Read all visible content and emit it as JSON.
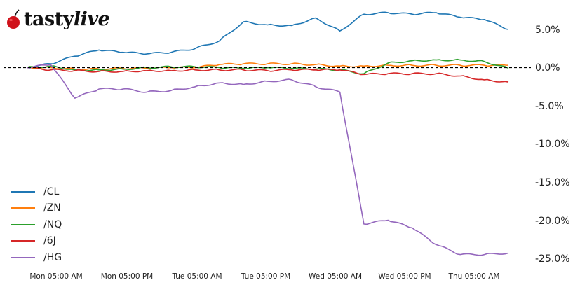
{
  "logo": {
    "text_main": "tasty",
    "text_accent": "live",
    "icon": "cherry-icon",
    "icon_color": "#d0121b"
  },
  "chart_data": {
    "type": "line",
    "title": "",
    "xlabel": "",
    "ylabel": "",
    "ylim": [
      -26.0,
      9.0
    ],
    "grid": false,
    "legend_position": "lower left",
    "x_ticks": [
      "Mon 05:00 AM",
      "Mon 05:00 PM",
      "Tue 05:00 AM",
      "Tue 05:00 PM",
      "Wed 05:00 AM",
      "Wed 05:00 PM",
      "Thu 05:00 AM"
    ],
    "y_ticks": [
      "5.0%",
      "0.0%",
      "-5.0%",
      "-10.0%",
      "-15.0%",
      "-20.0%",
      "-25.0%"
    ],
    "y_tick_values": [
      5,
      0,
      -5,
      -10,
      -15,
      -20,
      -25
    ],
    "reference_line": {
      "y": 0,
      "style": "dashed",
      "color": "#000000"
    },
    "x": [
      "Mon 01:00",
      "Mon 05:00",
      "Mon 09:00",
      "Mon 13:00",
      "Mon 17:00",
      "Mon 21:00",
      "Tue 01:00",
      "Tue 05:00",
      "Tue 09:00",
      "Tue 13:00",
      "Tue 17:00",
      "Tue 21:00",
      "Wed 01:00",
      "Wed 05:00",
      "Wed 09:00",
      "Wed 13:00",
      "Wed 17:00",
      "Wed 21:00",
      "Thu 01:00",
      "Thu 05:00",
      "Thu 09:00"
    ],
    "series": [
      {
        "name": "/CL",
        "color": "#1f77b4",
        "values": [
          0.0,
          0.5,
          1.5,
          2.3,
          2.0,
          1.8,
          2.0,
          2.5,
          3.5,
          6.0,
          5.6,
          5.5,
          6.5,
          4.8,
          7.0,
          7.2,
          7.0,
          7.2,
          6.6,
          6.3,
          5.0
        ]
      },
      {
        "name": "/ZN",
        "color": "#ff7f0e",
        "values": [
          0.0,
          0.0,
          -0.2,
          -0.2,
          -0.1,
          -0.1,
          0.0,
          0.0,
          0.4,
          0.5,
          0.5,
          0.5,
          0.4,
          0.2,
          0.2,
          0.3,
          0.3,
          0.3,
          0.3,
          0.3,
          0.3
        ]
      },
      {
        "name": "/NQ",
        "color": "#2ca02c",
        "values": [
          0.0,
          0.2,
          -0.3,
          -0.3,
          -0.2,
          0.0,
          0.1,
          0.1,
          0.0,
          -0.1,
          0.0,
          -0.1,
          -0.2,
          -0.3,
          -0.8,
          0.6,
          0.9,
          1.0,
          1.0,
          0.8,
          -0.1
        ]
      },
      {
        "name": "/6J",
        "color": "#d62728",
        "values": [
          0.0,
          -0.3,
          -0.4,
          -0.5,
          -0.5,
          -0.4,
          -0.4,
          -0.3,
          -0.3,
          -0.3,
          -0.4,
          -0.3,
          -0.3,
          -0.3,
          -0.9,
          -0.8,
          -0.8,
          -0.8,
          -1.1,
          -1.6,
          -1.9
        ]
      },
      {
        "name": "/HG",
        "color": "#9467bd",
        "values": [
          0.0,
          0.4,
          -4.0,
          -2.8,
          -2.8,
          -3.2,
          -3.0,
          -2.5,
          -2.0,
          -2.2,
          -1.8,
          -1.6,
          -2.5,
          -3.2,
          -20.5,
          -20.0,
          -21.0,
          -23.2,
          -24.5,
          -24.5,
          -24.3
        ]
      }
    ]
  }
}
